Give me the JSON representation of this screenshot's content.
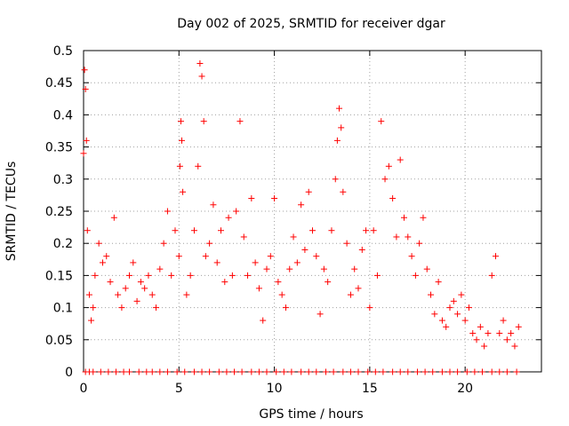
{
  "chart_data": {
    "type": "scatter",
    "title": "Day 002 of 2025, SRMTID for receiver dgar",
    "xlabel": "GPS time / hours",
    "ylabel": "SRMTID / TECUs",
    "xlim": [
      0,
      24
    ],
    "ylim": [
      0,
      0.5
    ],
    "xticks": [
      0,
      5,
      10,
      15,
      20
    ],
    "yticks": [
      0,
      0.05,
      0.1,
      0.15,
      0.2,
      0.25,
      0.3,
      0.35,
      0.4,
      0.45,
      0.5
    ],
    "xtick_labels": [
      "0",
      "5",
      "10",
      "15",
      "20"
    ],
    "ytick_labels": [
      "0",
      "0.05",
      "0.1",
      "0.15",
      "0.2",
      "0.25",
      "0.3",
      "0.35",
      "0.4",
      "0.45",
      "0.5"
    ],
    "grid": true,
    "marker": "+",
    "color": "#ff0000",
    "series": [
      {
        "name": "SRMTID",
        "x": [
          0.0,
          0.05,
          0.1,
          0.15,
          0.2,
          0.3,
          0.4,
          0.5,
          0.6,
          0.8,
          1.0,
          1.2,
          1.4,
          1.6,
          1.8,
          2.0,
          2.2,
          2.4,
          2.6,
          2.8,
          3.0,
          3.2,
          3.4,
          3.6,
          3.8,
          4.0,
          4.2,
          4.4,
          4.6,
          4.8,
          5.0,
          5.05,
          5.1,
          5.15,
          5.2,
          5.4,
          5.6,
          5.8,
          6.0,
          6.1,
          6.2,
          6.3,
          6.4,
          6.6,
          6.8,
          7.0,
          7.2,
          7.4,
          7.6,
          7.8,
          8.0,
          8.2,
          8.4,
          8.6,
          8.8,
          9.0,
          9.2,
          9.4,
          9.6,
          9.8,
          10.0,
          10.2,
          10.4,
          10.6,
          10.8,
          11.0,
          11.2,
          11.4,
          11.6,
          11.8,
          12.0,
          12.2,
          12.4,
          12.6,
          12.8,
          13.0,
          13.2,
          13.3,
          13.4,
          13.5,
          13.6,
          13.8,
          14.0,
          14.2,
          14.4,
          14.6,
          14.8,
          15.0,
          15.2,
          15.4,
          15.6,
          15.8,
          16.0,
          16.2,
          16.4,
          16.6,
          16.8,
          17.0,
          17.2,
          17.4,
          17.6,
          17.8,
          18.0,
          18.2,
          18.4,
          18.6,
          18.8,
          19.0,
          19.2,
          19.4,
          19.6,
          19.8,
          20.0,
          20.2,
          20.4,
          20.6,
          20.8,
          21.0,
          21.2,
          21.4,
          21.6,
          21.8,
          22.0,
          22.2,
          22.4,
          22.6,
          22.8
        ],
        "y": [
          0.34,
          0.47,
          0.44,
          0.36,
          0.22,
          0.12,
          0.08,
          0.1,
          0.15,
          0.2,
          0.17,
          0.18,
          0.14,
          0.24,
          0.12,
          0.1,
          0.13,
          0.15,
          0.17,
          0.11,
          0.14,
          0.13,
          0.15,
          0.12,
          0.1,
          0.16,
          0.2,
          0.25,
          0.15,
          0.22,
          0.18,
          0.32,
          0.39,
          0.36,
          0.28,
          0.12,
          0.15,
          0.22,
          0.32,
          0.48,
          0.46,
          0.39,
          0.18,
          0.2,
          0.26,
          0.17,
          0.22,
          0.14,
          0.24,
          0.15,
          0.25,
          0.39,
          0.21,
          0.15,
          0.27,
          0.17,
          0.13,
          0.08,
          0.16,
          0.18,
          0.27,
          0.14,
          0.12,
          0.1,
          0.16,
          0.21,
          0.17,
          0.26,
          0.19,
          0.28,
          0.22,
          0.18,
          0.09,
          0.16,
          0.14,
          0.22,
          0.3,
          0.36,
          0.41,
          0.38,
          0.28,
          0.2,
          0.12,
          0.16,
          0.13,
          0.19,
          0.22,
          0.1,
          0.22,
          0.15,
          0.39,
          0.3,
          0.32,
          0.27,
          0.21,
          0.33,
          0.24,
          0.21,
          0.18,
          0.15,
          0.2,
          0.24,
          0.16,
          0.12,
          0.09,
          0.14,
          0.08,
          0.07,
          0.1,
          0.11,
          0.09,
          0.12,
          0.08,
          0.1,
          0.06,
          0.05,
          0.07,
          0.04,
          0.06,
          0.15,
          0.18,
          0.06,
          0.08,
          0.05,
          0.06,
          0.04,
          0.07
        ]
      }
    ],
    "zero_level_x": [
      0.1,
      0.3,
      0.5,
      0.9,
      1.3,
      1.7,
      2.1,
      2.4,
      2.9,
      3.3,
      3.6,
      4.0,
      4.4,
      4.9,
      5.3,
      5.8,
      6.2,
      6.6,
      7.1,
      7.5,
      7.9,
      8.3,
      8.8,
      9.2,
      9.6,
      10.1,
      10.5,
      10.9,
      11.4,
      11.8,
      12.2,
      12.7,
      13.1,
      13.6,
      14.0,
      14.4,
      14.9,
      15.3,
      15.7,
      16.2,
      16.6,
      17.0,
      17.5,
      17.9,
      18.3,
      18.8,
      19.2,
      19.6,
      20.1,
      20.5,
      20.9,
      21.4,
      21.8,
      22.2,
      22.7
    ]
  }
}
